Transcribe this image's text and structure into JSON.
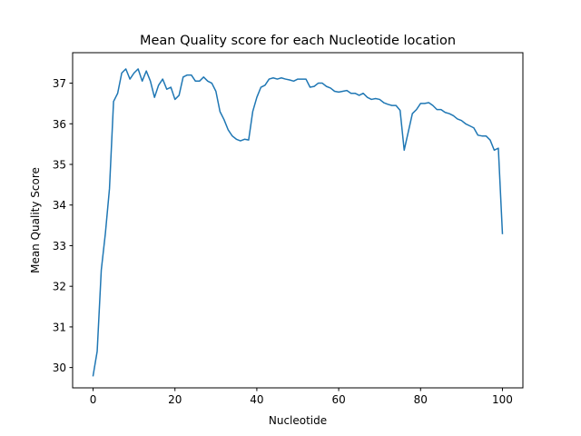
{
  "chart_data": {
    "type": "line",
    "title": "Mean Quality score for each Nucleotide location",
    "xlabel": "Nucleotide",
    "ylabel": "Mean Quality Score",
    "xlim": [
      -5,
      105
    ],
    "ylim": [
      29.5,
      37.75
    ],
    "x_ticks": [
      0,
      20,
      40,
      60,
      80,
      100
    ],
    "y_ticks": [
      30,
      31,
      32,
      33,
      34,
      35,
      36,
      37
    ],
    "grid": false,
    "colors": {
      "line": "#1f77b4"
    },
    "series": [
      {
        "x": [
          0,
          1,
          2,
          3,
          4,
          5,
          6,
          7,
          8,
          9,
          10,
          11,
          12,
          13,
          14,
          15,
          16,
          17,
          18,
          19,
          20,
          21,
          22,
          23,
          24,
          25,
          26,
          27,
          28,
          29,
          30,
          31,
          32,
          33,
          34,
          35,
          36,
          37,
          38,
          39,
          40,
          41,
          42,
          43,
          44,
          45,
          46,
          47,
          48,
          49,
          50,
          51,
          52,
          53,
          54,
          55,
          56,
          57,
          58,
          59,
          60,
          61,
          62,
          63,
          64,
          65,
          66,
          67,
          68,
          69,
          70,
          71,
          72,
          73,
          74,
          75,
          76,
          77,
          78,
          79,
          80,
          81,
          82,
          83,
          84,
          85,
          86,
          87,
          88,
          89,
          90,
          91,
          92,
          93,
          94,
          95,
          96,
          97,
          98,
          99,
          100
        ],
        "y": [
          29.8,
          30.4,
          32.4,
          33.3,
          34.4,
          36.55,
          36.75,
          37.25,
          37.35,
          37.1,
          37.25,
          37.35,
          37.05,
          37.3,
          37.05,
          36.65,
          36.95,
          37.1,
          36.85,
          36.9,
          36.6,
          36.7,
          37.15,
          37.2,
          37.2,
          37.05,
          37.05,
          37.15,
          37.05,
          37.0,
          36.8,
          36.3,
          36.1,
          35.85,
          35.7,
          35.62,
          35.58,
          35.62,
          35.6,
          36.3,
          36.65,
          36.9,
          36.95,
          37.1,
          37.13,
          37.1,
          37.13,
          37.1,
          37.08,
          37.05,
          37.1,
          37.1,
          37.1,
          36.9,
          36.92,
          37.0,
          37.0,
          36.92,
          36.88,
          36.8,
          36.78,
          36.8,
          36.82,
          36.75,
          36.75,
          36.7,
          36.75,
          36.65,
          36.6,
          36.62,
          36.6,
          36.52,
          36.48,
          36.45,
          36.45,
          36.33,
          35.35,
          35.8,
          36.25,
          36.35,
          36.5,
          36.5,
          36.52,
          36.45,
          36.35,
          36.35,
          36.28,
          36.25,
          36.2,
          36.12,
          36.08,
          36.0,
          35.95,
          35.9,
          35.72,
          35.7,
          35.7,
          35.6,
          35.35,
          35.4,
          33.3
        ]
      }
    ]
  }
}
